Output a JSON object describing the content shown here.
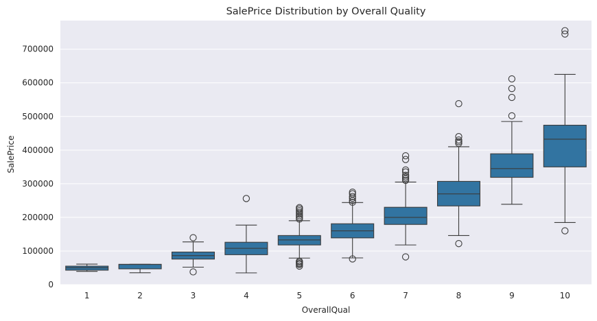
{
  "chart_data": {
    "type": "box",
    "title": "SalePrice Distribution by Overall Quality",
    "xlabel": "OverallQual",
    "ylabel": "SalePrice",
    "categories": [
      "1",
      "2",
      "3",
      "4",
      "5",
      "6",
      "7",
      "8",
      "9",
      "10"
    ],
    "yticks": [
      0,
      100000,
      200000,
      300000,
      400000,
      500000,
      600000,
      700000
    ],
    "ytick_labels": [
      "0",
      "100000",
      "200000",
      "300000",
      "400000",
      "500000",
      "600000",
      "700000"
    ],
    "ylim": [
      0,
      785000
    ],
    "grid": true,
    "box_color": "#3274a1",
    "background": "#eaeaf2",
    "boxes": [
      {
        "category": "1",
        "whisker_low": 39300,
        "q1": 43000,
        "median": 50150,
        "q3": 55000,
        "whisker_high": 61000,
        "outliers": []
      },
      {
        "category": "2",
        "whisker_low": 35300,
        "q1": 47000,
        "median": 60000,
        "q3": 60500,
        "whisker_high": 60500,
        "outliers": []
      },
      {
        "category": "3",
        "whisker_low": 52000,
        "q1": 76000,
        "median": 86250,
        "q3": 97000,
        "whisker_high": 127000,
        "outliers": [
          37900,
          139600
        ]
      },
      {
        "category": "4",
        "whisker_low": 34900,
        "q1": 89000,
        "median": 108000,
        "q3": 126000,
        "whisker_high": 177000,
        "outliers": [
          256000
        ]
      },
      {
        "category": "5",
        "whisker_low": 79000,
        "q1": 118000,
        "median": 133000,
        "q3": 146000,
        "whisker_high": 190000,
        "outliers": [
          55000,
          60000,
          63000,
          66500,
          69500,
          195000,
          200000,
          205000,
          210000,
          215000,
          220000,
          225000,
          228950
        ]
      },
      {
        "category": "6",
        "whisker_low": 79500,
        "q1": 139000,
        "median": 160000,
        "q3": 181000,
        "whisker_high": 244000,
        "outliers": [
          76500,
          245000,
          250000,
          257000,
          262000,
          270000,
          275000
        ]
      },
      {
        "category": "7",
        "whisker_low": 118000,
        "q1": 179000,
        "median": 200000,
        "q3": 230000,
        "whisker_high": 305000,
        "outliers": [
          82500,
          310000,
          315000,
          320000,
          325000,
          335000,
          341000,
          372000,
          383000
        ]
      },
      {
        "category": "8",
        "whisker_low": 146000,
        "q1": 234000,
        "median": 269750,
        "q3": 307000,
        "whisker_high": 410000,
        "outliers": [
          122000,
          420000,
          425000,
          430000,
          440000,
          538000
        ]
      },
      {
        "category": "9",
        "whisker_low": 239000,
        "q1": 319000,
        "median": 345000,
        "q3": 389000,
        "whisker_high": 485000,
        "outliers": [
          501837,
          556581,
          582933,
          611657
        ]
      },
      {
        "category": "10",
        "whisker_low": 184750,
        "q1": 350000,
        "median": 432390,
        "q3": 474000,
        "whisker_high": 625000,
        "outliers": [
          160000,
          745000,
          755000
        ]
      }
    ]
  }
}
